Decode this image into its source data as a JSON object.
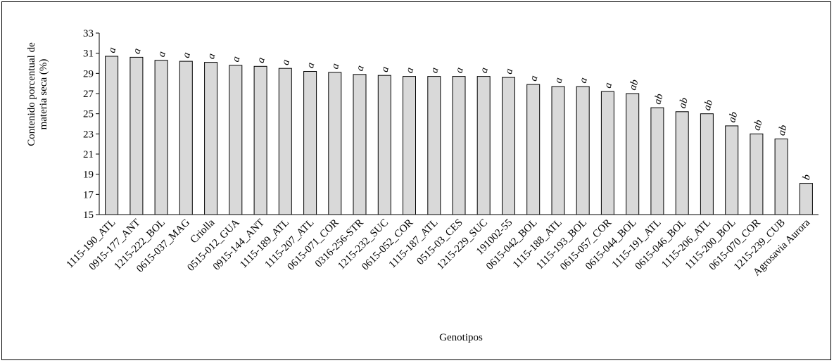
{
  "chart_data": {
    "type": "bar",
    "xlabel": "Genotipos",
    "ylabel_lines": [
      "Contenido porcentual de",
      "materia seca (%)"
    ],
    "ylim": [
      15,
      33
    ],
    "yticks": [
      15,
      17,
      19,
      21,
      23,
      25,
      27,
      29,
      31,
      33
    ],
    "grid": false,
    "bar_color": "#d9d9d9",
    "categories": [
      "1115-190_ATL",
      "0915-177_ANT",
      "1215-222_BOL",
      "0615-037_MAG",
      "Criolla",
      "0515-012_GUA",
      "0915-144_ANT",
      "1115-189_ATL",
      "1115-207_ATL",
      "0615-071_COR",
      "0316-256-STR",
      "1215-232_SUC",
      "0615-052_COR",
      "1115-187_ATL",
      "0515-03_CES",
      "1215-229_SUC",
      "191002-55",
      "0615-042_BOL",
      "1115-188_ATL",
      "1115-193_BOL",
      "0615-057_COR",
      "0615-044_BOL",
      "1115-191_ATL",
      "0615-046_BOL",
      "1115-206_ATL",
      "1115-200_BOL",
      "0615-070_COR",
      "1215-239_CUB",
      "Agrosavia Aurora"
    ],
    "values": [
      30.7,
      30.6,
      30.3,
      30.2,
      30.1,
      29.8,
      29.7,
      29.5,
      29.2,
      29.1,
      28.9,
      28.8,
      28.7,
      28.7,
      28.7,
      28.7,
      28.6,
      27.9,
      27.7,
      27.7,
      27.2,
      27.0,
      25.6,
      25.2,
      25.0,
      23.8,
      23.0,
      22.5,
      18.1
    ],
    "labels": [
      "a",
      "a",
      "a",
      "a",
      "a",
      "a",
      "a",
      "a",
      "a",
      "a",
      "a",
      "a",
      "a",
      "a",
      "a",
      "a",
      "a",
      "a",
      "a",
      "a",
      "a",
      "ab",
      "ab",
      "ab",
      "ab",
      "ab",
      "ab",
      "ab",
      "b"
    ]
  }
}
